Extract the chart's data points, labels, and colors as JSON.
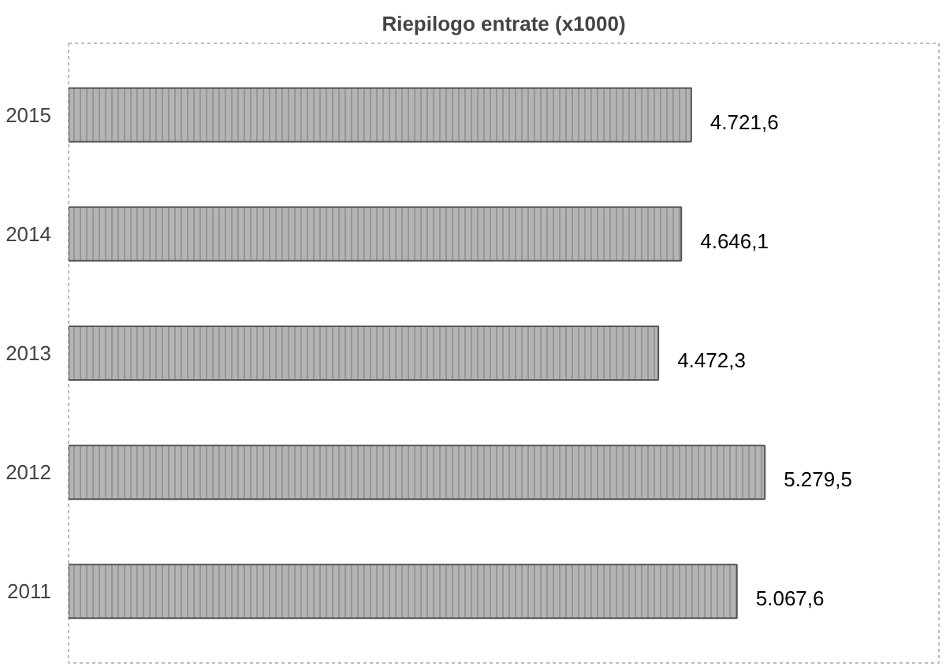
{
  "chart_data": {
    "type": "bar",
    "orientation": "horizontal",
    "title": "Riepilogo entrate (x1000)",
    "categories": [
      "2015",
      "2014",
      "2013",
      "2012",
      "2011"
    ],
    "values": [
      4721.6,
      4646.1,
      4472.3,
      5279.5,
      5067.6
    ],
    "value_labels": [
      "4.721,6",
      "4.646,1",
      "4.472,3",
      "5.279,5",
      "5.067,6"
    ],
    "color": "#b4b4b4"
  }
}
